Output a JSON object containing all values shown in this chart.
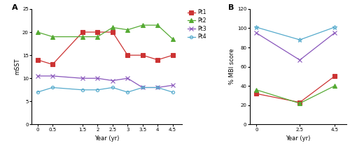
{
  "panel_A": {
    "title": "A",
    "xlabel": "Year (yr)",
    "ylabel": "mSST",
    "xlim": [
      -0.2,
      4.8
    ],
    "ylim": [
      0,
      25
    ],
    "xticks": [
      0,
      0.5,
      1.5,
      2,
      2.5,
      3,
      3.5,
      4,
      4.5
    ],
    "yticks": [
      0,
      5,
      10,
      15,
      20,
      25
    ],
    "series": {
      "Pt1": {
        "x": [
          0,
          0.5,
          1.5,
          2,
          2.5,
          3,
          3.5,
          4,
          4.5
        ],
        "y": [
          14,
          13,
          20,
          20,
          20,
          15,
          15,
          14,
          15
        ],
        "color": "#cc3333",
        "marker": "s",
        "linestyle": "-"
      },
      "Pt2": {
        "x": [
          0,
          0.5,
          1.5,
          2,
          2.5,
          3,
          3.5,
          4,
          4.5
        ],
        "y": [
          20,
          19,
          19,
          19,
          21,
          20.5,
          21.5,
          21.5,
          18.5
        ],
        "color": "#55aa33",
        "marker": "^",
        "linestyle": "-"
      },
      "Pt3": {
        "x": [
          0,
          0.5,
          1.5,
          2,
          2.5,
          3,
          3.5,
          4,
          4.5
        ],
        "y": [
          10.5,
          10.5,
          10,
          10,
          9.5,
          10,
          8,
          8,
          8.5
        ],
        "color": "#8855bb",
        "marker": "x",
        "linestyle": "-"
      },
      "Pt4": {
        "x": [
          0,
          0.5,
          1.5,
          2,
          2.5,
          3,
          3.5,
          4,
          4.5
        ],
        "y": [
          7,
          8,
          7.5,
          7.5,
          8,
          7,
          8,
          8,
          7
        ],
        "color": "#55aacc",
        "marker": "o",
        "linestyle": "-"
      }
    }
  },
  "panel_B": {
    "title": "B",
    "xlabel": "Year (yr)",
    "ylabel": "% MBI score",
    "xlim": [
      -0.4,
      5.2
    ],
    "ylim": [
      0,
      120
    ],
    "xticks": [
      0,
      2.5,
      4.5
    ],
    "yticks": [
      0,
      20,
      40,
      60,
      80,
      100,
      120
    ],
    "series": {
      "Pt1": {
        "x": [
          0,
          2.5,
          4.5
        ],
        "y": [
          32,
          23,
          50
        ],
        "color": "#cc3333",
        "marker": "s",
        "linestyle": "-"
      },
      "Pt2": {
        "x": [
          0,
          2.5,
          4.5
        ],
        "y": [
          36,
          22,
          40
        ],
        "color": "#55aa33",
        "marker": "^",
        "linestyle": "-"
      },
      "Pt3": {
        "x": [
          0,
          2.5,
          4.5
        ],
        "y": [
          95,
          67,
          95
        ],
        "color": "#8855bb",
        "marker": "x",
        "linestyle": "-"
      },
      "Pt4": {
        "x": [
          0,
          2.5,
          4.5
        ],
        "y": [
          101,
          88,
          101
        ],
        "color": "#55aacc",
        "marker": "*",
        "linestyle": "-"
      }
    }
  }
}
